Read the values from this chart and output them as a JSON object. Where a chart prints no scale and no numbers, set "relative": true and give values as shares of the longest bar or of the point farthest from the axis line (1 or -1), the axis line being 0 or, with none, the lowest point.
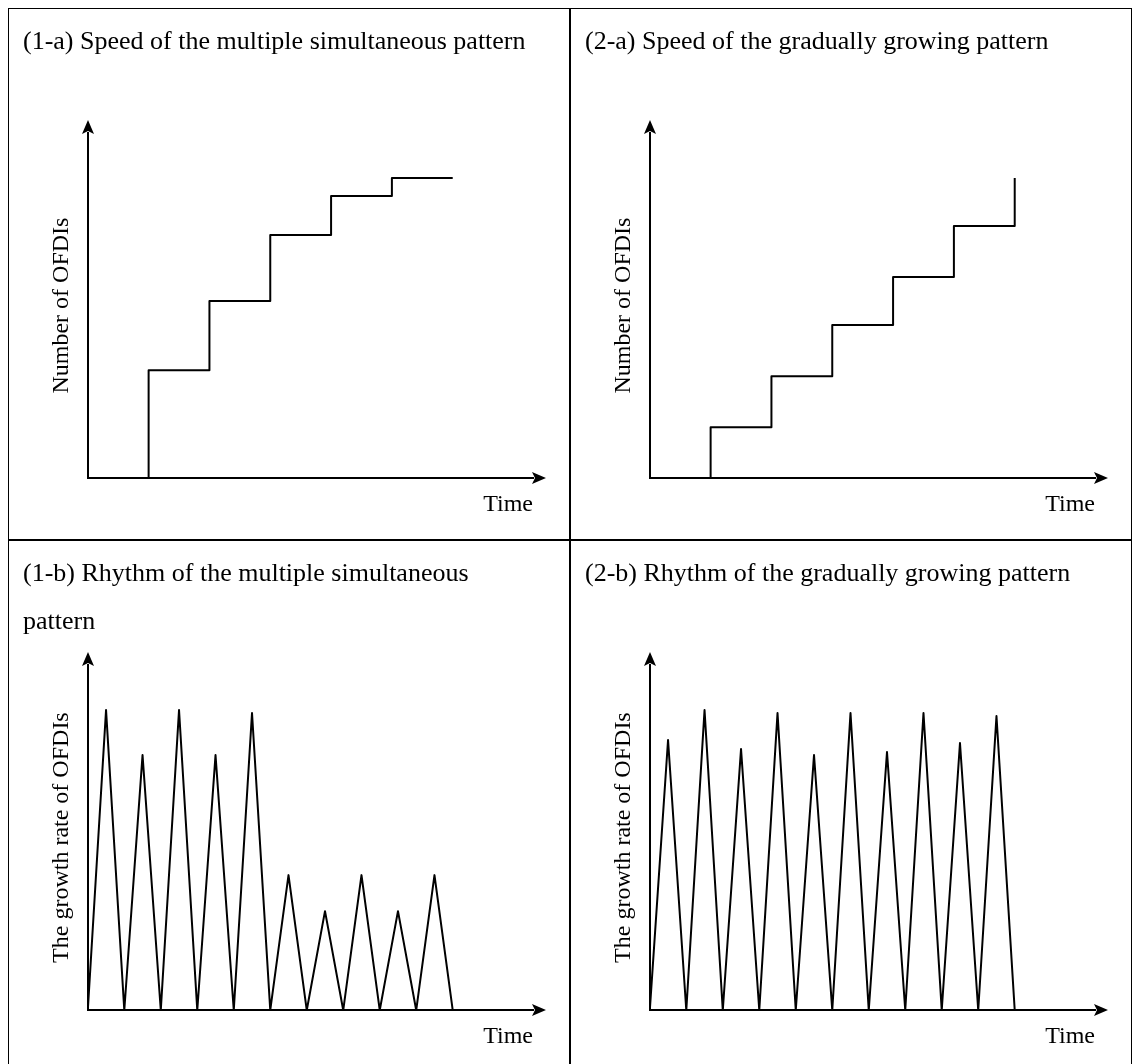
{
  "chart_data": [
    {
      "type": "step",
      "title": "(1-a) Speed of the multiple simultaneous pattern",
      "xlabel": "Time",
      "ylabel": "Number of OFDIs",
      "relative": true,
      "tick_labels": false,
      "color": "#000000",
      "categories": [
        null,
        null,
        null,
        null,
        null,
        null,
        null
      ],
      "values": [
        0,
        0.36,
        0.59,
        0.81,
        0.94,
        1,
        1
      ]
    },
    {
      "type": "step",
      "title": "(2-a) Speed of the gradually growing pattern",
      "xlabel": "Time",
      "ylabel": "Number of OFDIs",
      "relative": true,
      "tick_labels": false,
      "color": "#000000",
      "categories": [
        null,
        null,
        null,
        null,
        null,
        null,
        null
      ],
      "values": [
        0,
        0.17,
        0.34,
        0.51,
        0.67,
        0.84,
        1
      ]
    },
    {
      "type": "line",
      "title": "(1-b) Rhythm of the multiple simultaneous pattern",
      "xlabel": "Time",
      "ylabel": "The growth rate of OFDIs",
      "relative": true,
      "tick_labels": false,
      "color": "#000000",
      "categories": [
        null,
        null,
        null,
        null,
        null,
        null,
        null,
        null,
        null,
        null,
        null,
        null,
        null,
        null,
        null,
        null,
        null,
        null,
        null,
        null,
        null
      ],
      "values": [
        0,
        1,
        0,
        0.85,
        0,
        1,
        0,
        0.85,
        0,
        0.99,
        0,
        0.45,
        0,
        0.33,
        0,
        0.45,
        0,
        0.33,
        0,
        0.45,
        0
      ]
    },
    {
      "type": "line",
      "title": "(2-b) Rhythm of the gradually growing pattern",
      "xlabel": "Time",
      "ylabel": "The growth rate of OFDIs",
      "relative": true,
      "tick_labels": false,
      "color": "#000000",
      "categories": [
        null,
        null,
        null,
        null,
        null,
        null,
        null,
        null,
        null,
        null,
        null,
        null,
        null,
        null,
        null,
        null,
        null,
        null,
        null,
        null,
        null
      ],
      "values": [
        0,
        0.9,
        0,
        1,
        0,
        0.87,
        0,
        0.99,
        0,
        0.85,
        0,
        0.99,
        0,
        0.86,
        0,
        0.99,
        0,
        0.89,
        0,
        0.98,
        0
      ]
    }
  ]
}
